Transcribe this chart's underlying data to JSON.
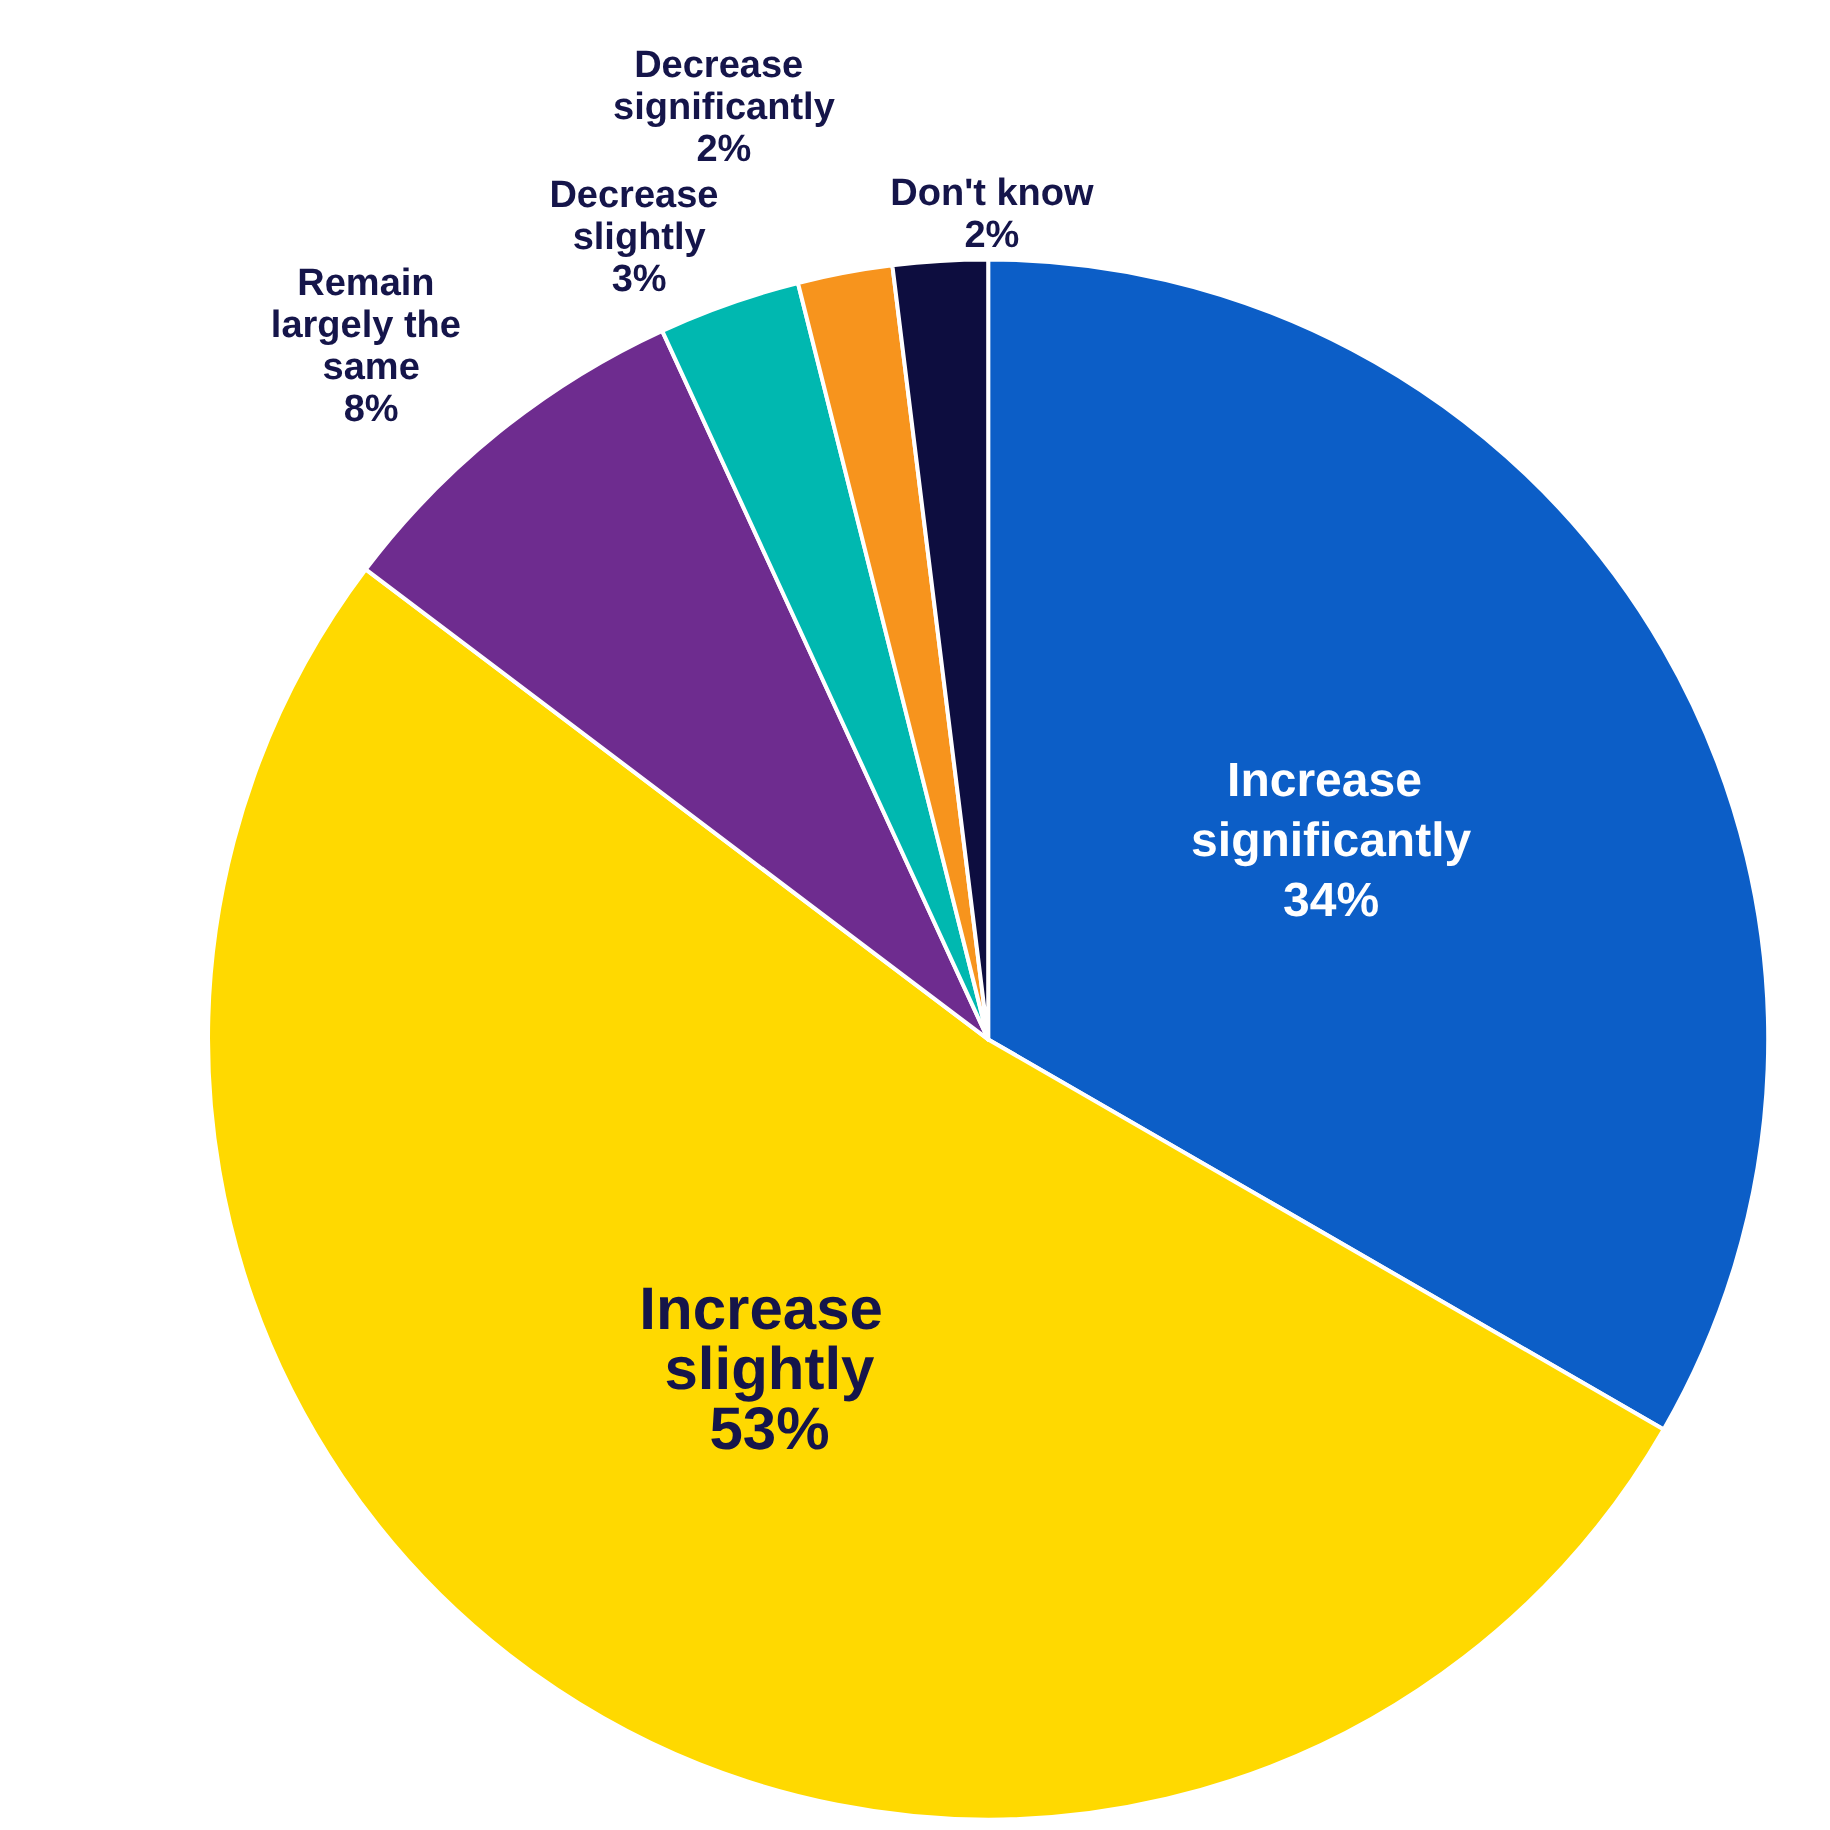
{
  "chart_data": {
    "type": "pie",
    "categories": [
      "Increase significantly",
      "Increase slightly",
      "Remain largely the same",
      "Decrease slightly",
      "Decrease significantly",
      "Don't know"
    ],
    "values": [
      34,
      53,
      8,
      3,
      2,
      2
    ],
    "value_labels": [
      "34%",
      "53%",
      "8%",
      "3%",
      "2%",
      "2%"
    ],
    "colors": [
      "#0c5ec7",
      "#ffd900",
      "#6e2c8f",
      "#00b8b0",
      "#f7941d",
      "#0d0d3f"
    ],
    "legend": false
  }
}
